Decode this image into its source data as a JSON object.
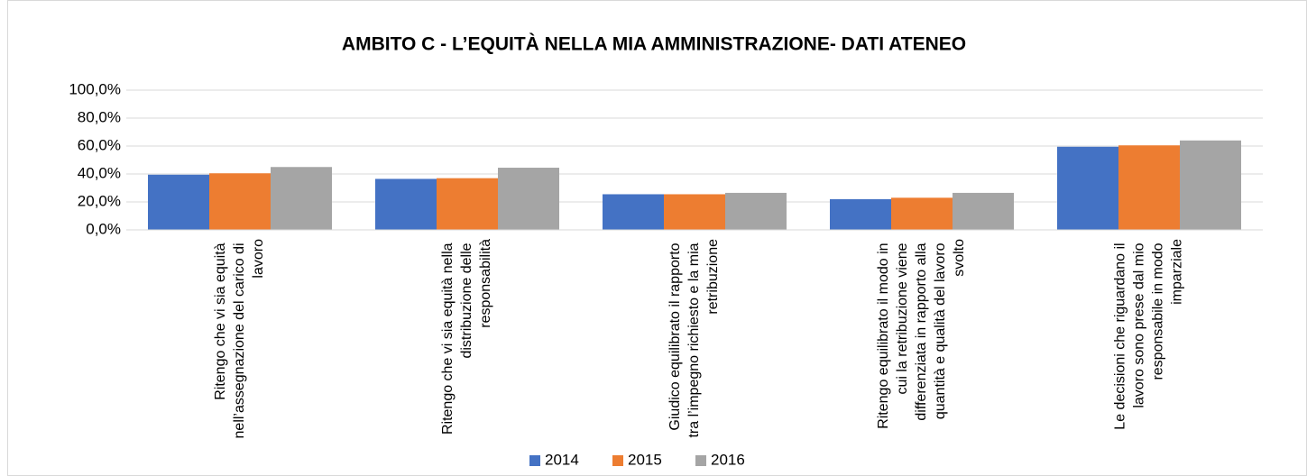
{
  "chart_data": {
    "type": "bar",
    "title": "AMBITO C - L’EQUITÀ NELLA MIA AMMINISTRAZIONE- DATI ATENEO",
    "categories": [
      "Ritengo che vi sia equità nell’assegnazione del carico di lavoro",
      "Ritengo che vi sia equità nella distribuzione delle responsabilità",
      "Giudico equilibrato il rapporto tra l’impegno richiesto e la mia retribuzione",
      "Ritengo equilibrato il modo in cui la retribuzione viene differenziata in rapporto alla quantità e qualità del lavoro svolto",
      "Le decisioni che riguardano il lavoro sono prese dal mio responsabile in modo imparziale"
    ],
    "series": [
      {
        "name": "2014",
        "color": "#4472c4",
        "values": [
          39.5,
          36.5,
          25.5,
          22,
          59.5
        ]
      },
      {
        "name": "2015",
        "color": "#ed7d31",
        "values": [
          40.5,
          37,
          25.5,
          23,
          60.5
        ]
      },
      {
        "name": "2016",
        "color": "#a5a5a5",
        "values": [
          45,
          44.5,
          26.5,
          26.5,
          64
        ]
      }
    ],
    "ylim": [
      0,
      100
    ],
    "yticks": [
      {
        "value": 0,
        "label": "0,0%"
      },
      {
        "value": 20,
        "label": "20,0%"
      },
      {
        "value": 40,
        "label": "40,0%"
      },
      {
        "value": 60,
        "label": "60,0%"
      },
      {
        "value": 80,
        "label": "80,0%"
      },
      {
        "value": 100,
        "label": "100,0%"
      }
    ],
    "grid": true,
    "legend": "bottom"
  }
}
